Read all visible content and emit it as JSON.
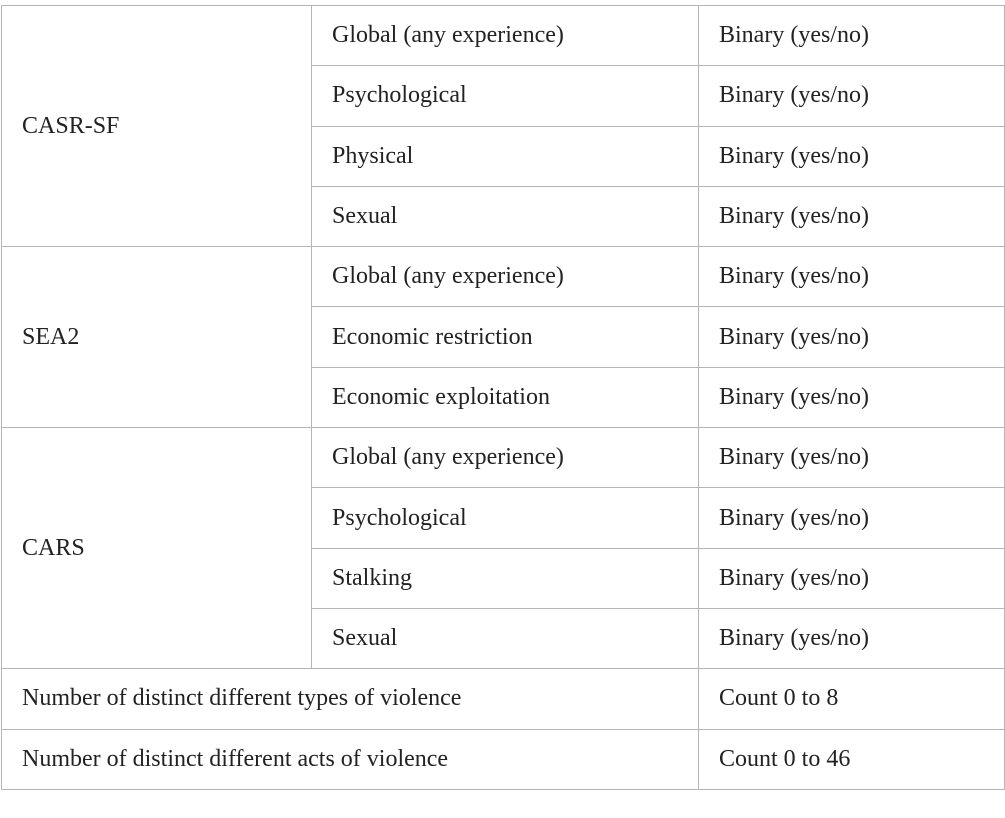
{
  "table": {
    "groups": [
      {
        "label": "CASR-SF",
        "rows": [
          [
            "Global (any experience)",
            "Binary (yes/no)"
          ],
          [
            "Psychological",
            "Binary (yes/no)"
          ],
          [
            "Physical",
            "Binary (yes/no)"
          ],
          [
            "Sexual",
            "Binary (yes/no)"
          ]
        ]
      },
      {
        "label": "SEA2",
        "rows": [
          [
            "Global (any experience)",
            "Binary (yes/no)"
          ],
          [
            "Economic restriction",
            "Binary (yes/no)"
          ],
          [
            "Economic exploitation",
            "Binary (yes/no)"
          ]
        ]
      },
      {
        "label": "CARS",
        "rows": [
          [
            "Global (any experience)",
            "Binary (yes/no)"
          ],
          [
            "Psychological",
            "Binary (yes/no)"
          ],
          [
            "Stalking",
            "Binary (yes/no)"
          ],
          [
            "Sexual",
            "Binary (yes/no)"
          ]
        ]
      }
    ],
    "summary": [
      [
        "Number of distinct different types of violence",
        "Count 0 to 8"
      ],
      [
        "Number of distinct different acts of violence",
        "Count 0 to 46"
      ]
    ]
  }
}
